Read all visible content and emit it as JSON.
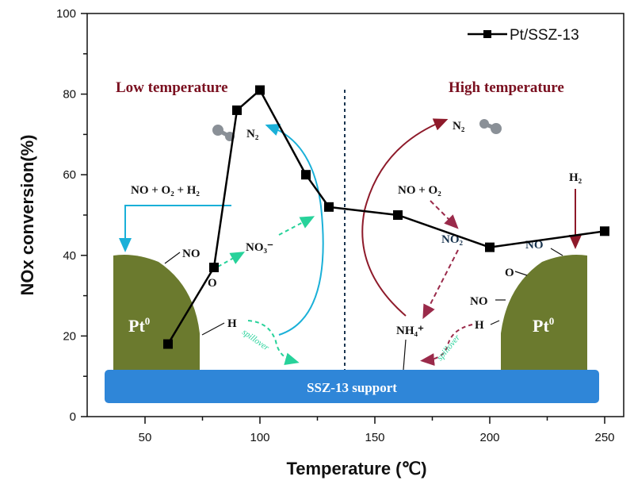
{
  "chart_data": {
    "type": "line",
    "title": "",
    "xlabel": "Temperature (℃)",
    "ylabel": "NOx conversion(%)",
    "xlim": [
      25,
      260
    ],
    "ylim": [
      0,
      100
    ],
    "x_ticks": [
      50,
      100,
      150,
      200,
      250
    ],
    "x_minor_ticks": [
      75,
      125,
      175,
      225
    ],
    "y_ticks": [
      0,
      20,
      40,
      60,
      80,
      100
    ],
    "y_minor_ticks": [
      10,
      30,
      50,
      70,
      90
    ],
    "grid": false,
    "legend": {
      "position": "top-right",
      "entries": [
        "Pt/SSZ-13"
      ]
    },
    "series": [
      {
        "name": "Pt/SSZ-13",
        "marker": "square",
        "color": "#000000",
        "x": [
          60,
          80,
          90,
          100,
          120,
          130,
          160,
          200,
          250
        ],
        "y": [
          18,
          37,
          76,
          81,
          60,
          52,
          50,
          42,
          46
        ]
      }
    ],
    "divider_x": 137,
    "annotations": {
      "low_title": "Low temperature",
      "high_title": "High temperature",
      "support": "SSZ-13 support",
      "pt_label": "Pt",
      "pt_sup": "0",
      "low": {
        "reactants": "NO + O₂ + H₂",
        "no": "NO",
        "o": "O",
        "h": "H",
        "no3": "NO₃⁻",
        "n2": "N₂",
        "spillover": "spillover"
      },
      "high": {
        "reactants": "NO + O₂",
        "no2": "NO₂",
        "no_top": "NO",
        "o": "O",
        "no": "NO",
        "h": "H",
        "h2": "H₂",
        "nh4": "NH₄⁺",
        "n2": "N₂",
        "spillover": "spillover"
      }
    },
    "colors": {
      "low_title": "#7a1020",
      "high_title": "#7a1020",
      "pt_particle": "#6b7a2e",
      "support": "#2f86d8",
      "cyan_arrow": "#1ab0d8",
      "green_dash": "#27d29a",
      "red_arrow": "#8e1a2a",
      "dashed_red": "#9a2a4a"
    }
  }
}
